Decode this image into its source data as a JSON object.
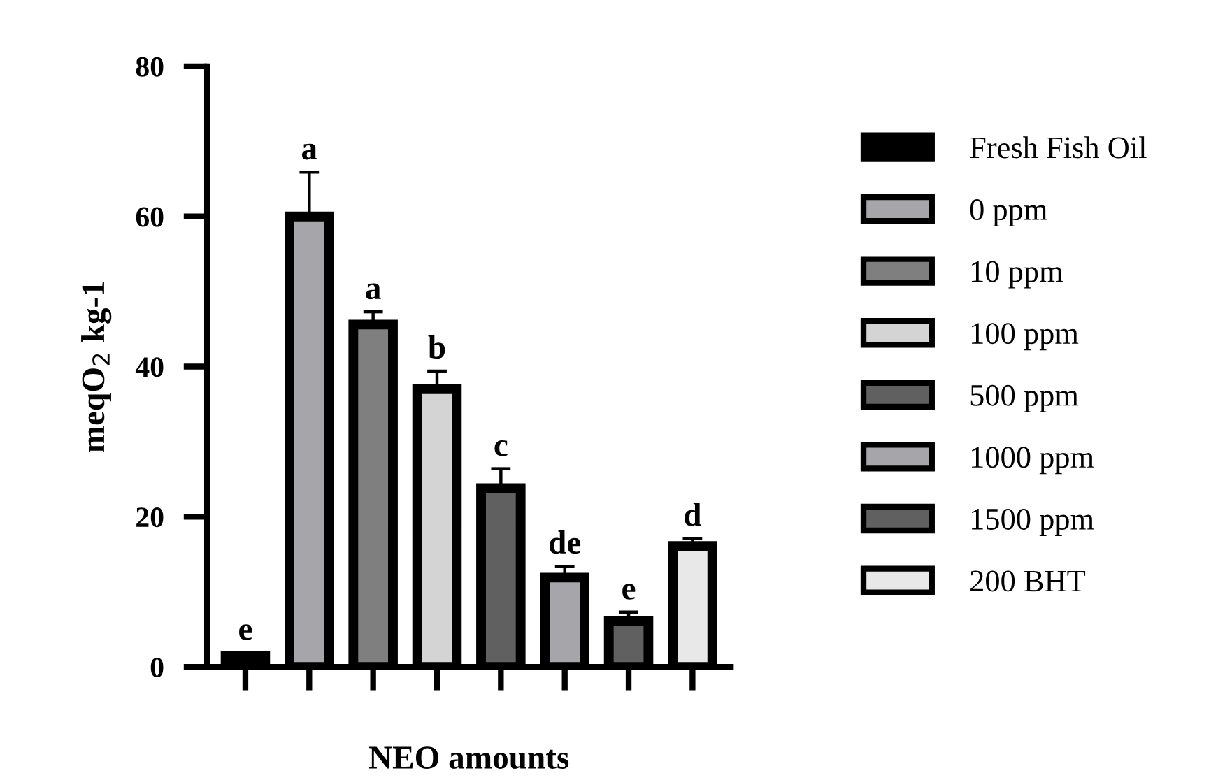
{
  "chart_data": {
    "type": "bar",
    "xlabel": "NEO amounts",
    "ylabel": "meqO$_{2}$ kg-1",
    "categories": [
      null,
      null,
      null,
      null,
      null,
      null,
      null,
      null
    ],
    "ylim": [
      0,
      80
    ],
    "yticks": [
      0,
      20,
      40,
      60,
      80
    ],
    "grid": false,
    "legend": "right",
    "series": [
      {
        "name": "Fresh Fish Oil",
        "color": "#000000",
        "values": [
          1.5,
          null,
          null,
          null,
          null,
          null,
          null,
          null
        ],
        "errors": [
          0.4,
          null,
          null,
          null,
          null,
          null,
          null,
          null
        ]
      },
      {
        "name": "0 ppm",
        "color": "#a6a6aa",
        "values": [
          null,
          60,
          null,
          null,
          null,
          null,
          null,
          null
        ],
        "errors": [
          null,
          5.9,
          null,
          null,
          null,
          null,
          null,
          null
        ]
      },
      {
        "name": "10 ppm",
        "color": "#7f7f7f",
        "values": [
          null,
          null,
          45.6,
          null,
          null,
          null,
          null,
          null
        ],
        "errors": [
          null,
          null,
          1.7,
          null,
          null,
          null,
          null,
          null
        ]
      },
      {
        "name": "100 ppm",
        "color": "#d4d4d4",
        "values": [
          null,
          null,
          null,
          37.0,
          null,
          null,
          null,
          null
        ],
        "errors": [
          null,
          null,
          null,
          2.4,
          null,
          null,
          null,
          null
        ]
      },
      {
        "name": "500 ppm",
        "color": "#606060",
        "values": [
          null,
          null,
          null,
          null,
          23.8,
          null,
          null,
          null
        ],
        "errors": [
          null,
          null,
          null,
          null,
          2.6,
          null,
          null,
          null
        ]
      },
      {
        "name": "1000 ppm",
        "color": "#a6a6aa",
        "values": [
          null,
          null,
          null,
          null,
          null,
          11.9,
          null,
          null
        ],
        "errors": [
          null,
          null,
          null,
          null,
          null,
          1.5,
          null,
          null
        ]
      },
      {
        "name": "1500 ppm",
        "color": "#606060",
        "values": [
          null,
          null,
          null,
          null,
          null,
          null,
          6.1,
          null
        ],
        "errors": [
          null,
          null,
          null,
          null,
          null,
          null,
          1.2,
          null
        ]
      },
      {
        "name": "200 BHT",
        "color": "#e8e8e8",
        "values": [
          null,
          null,
          null,
          null,
          null,
          null,
          null,
          16.1
        ],
        "errors": [
          null,
          null,
          null,
          null,
          null,
          null,
          null,
          1.0
        ]
      }
    ],
    "annotations": [
      "e",
      "a",
      "a",
      "b",
      "c",
      "de",
      "e",
      "d"
    ]
  }
}
